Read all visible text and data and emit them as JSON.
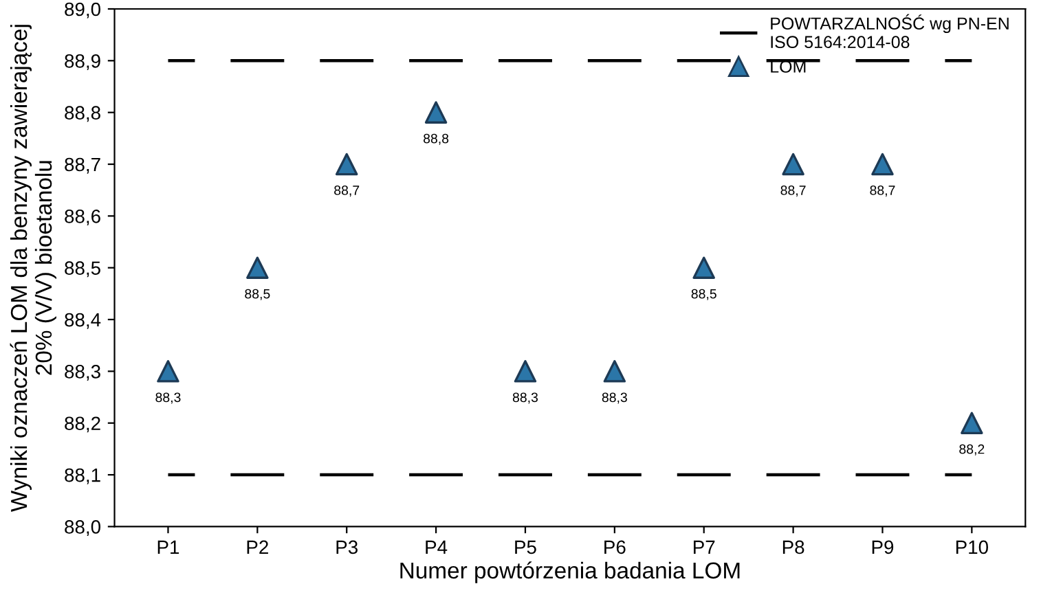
{
  "chart_data": {
    "type": "scatter",
    "xlabel": "Numer powtórzenia badania LOM",
    "ylabel": "Wyniki oznaczeń LOM dla benzyny zawierającej\n20% (V/V) bioetanolu",
    "categories": [
      "P1",
      "P2",
      "P3",
      "P4",
      "P5",
      "P6",
      "P7",
      "P8",
      "P9",
      "P10"
    ],
    "series": [
      {
        "name": "POWTARZALNOŚĆ wg PN-EN\nISO 5164:2014-08",
        "type": "line",
        "line_style": "dashed",
        "color": "#000000",
        "values": [
          88.9,
          88.9,
          88.9,
          88.9,
          88.9,
          88.9,
          88.9,
          88.9,
          88.9,
          88.9
        ]
      },
      {
        "type": "line",
        "line_style": "dashed",
        "color": "#000000",
        "values": [
          88.1,
          88.1,
          88.1,
          88.1,
          88.1,
          88.1,
          88.1,
          88.1,
          88.1,
          88.1
        ]
      },
      {
        "name": "LOM",
        "marker": "triangle",
        "color": "#2b76a8",
        "values": [
          88.3,
          88.5,
          88.7,
          88.8,
          88.3,
          88.3,
          88.5,
          88.7,
          88.7,
          88.2
        ],
        "value_labels": [
          "88,3",
          "88,5",
          "88,7",
          "88,8",
          "88,3",
          "88,3",
          "88,5",
          "88,7",
          "88,7",
          "88,2"
        ]
      }
    ],
    "ylim": [
      88.0,
      89.0
    ],
    "yticks": [
      {
        "value": 88.0,
        "label": "88,0"
      },
      {
        "value": 88.1,
        "label": "88,1"
      },
      {
        "value": 88.2,
        "label": "88,2"
      },
      {
        "value": 88.3,
        "label": "88,3"
      },
      {
        "value": 88.4,
        "label": "88,4"
      },
      {
        "value": 88.5,
        "label": "88,5"
      },
      {
        "value": 88.6,
        "label": "88,6"
      },
      {
        "value": 88.7,
        "label": "88,7"
      },
      {
        "value": 88.8,
        "label": "88,8"
      },
      {
        "value": 88.9,
        "label": "88,9"
      },
      {
        "value": 89.0,
        "label": "89,0"
      }
    ],
    "grid": false,
    "legend": "top right"
  }
}
